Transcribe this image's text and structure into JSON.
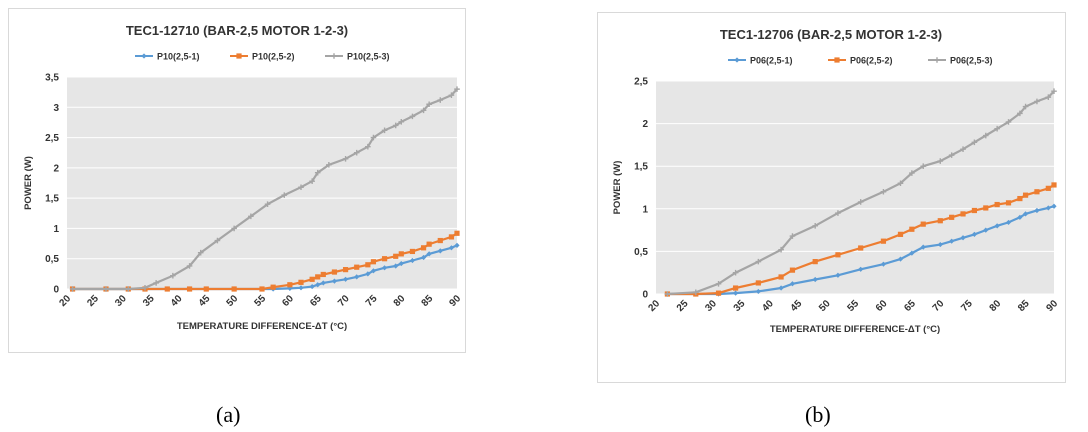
{
  "charts": [
    {
      "caption": "(a)",
      "chart_data": {
        "type": "line",
        "title": "TEC1-12710 (BAR-2,5 MOTOR 1-2-3)",
        "xlabel": "TEMPERATURE DIFFERENCE-ΔT (°C)",
        "ylabel": "POWER (W)",
        "xlim": [
          20,
          90
        ],
        "ylim": [
          0,
          3.5
        ],
        "xticks": [
          "20",
          "25",
          "30",
          "35",
          "40",
          "45",
          "50",
          "55",
          "60",
          "65",
          "70",
          "75",
          "80",
          "85",
          "90"
        ],
        "yticks": [
          "0",
          "0,5",
          "1",
          "1,5",
          "2",
          "2,5",
          "3",
          "3,5"
        ],
        "grid": true,
        "legend_position": "top",
        "series": [
          {
            "name": "P10(2,5-1)",
            "color": "#5b9bd5",
            "x": [
              21,
              27,
              31,
              34,
              38,
              42,
              45,
              50,
              55,
              57,
              60,
              62,
              64,
              65,
              66,
              68,
              70,
              72,
              74,
              75,
              77,
              79,
              80,
              82,
              84,
              85,
              87,
              89,
              90
            ],
            "y": [
              0,
              0,
              0,
              0,
              0,
              0,
              0,
              0,
              0,
              0,
              0.01,
              0.02,
              0.04,
              0.07,
              0.1,
              0.13,
              0.16,
              0.2,
              0.25,
              0.3,
              0.35,
              0.38,
              0.42,
              0.47,
              0.52,
              0.58,
              0.63,
              0.68,
              0.72
            ]
          },
          {
            "name": "P10(2,5-2)",
            "color": "#ed7d31",
            "x": [
              21,
              27,
              31,
              34,
              38,
              42,
              45,
              50,
              55,
              57,
              60,
              62,
              64,
              65,
              66,
              68,
              70,
              72,
              74,
              75,
              77,
              79,
              80,
              82,
              84,
              85,
              87,
              89,
              90
            ],
            "y": [
              0,
              0,
              0,
              0,
              0,
              0,
              0,
              0,
              0,
              0.03,
              0.07,
              0.11,
              0.16,
              0.2,
              0.24,
              0.28,
              0.32,
              0.36,
              0.4,
              0.45,
              0.5,
              0.54,
              0.58,
              0.62,
              0.68,
              0.74,
              0.8,
              0.86,
              0.92
            ]
          },
          {
            "name": "P10(2,5-3)",
            "color": "#a5a5a5",
            "x": [
              21,
              27,
              31,
              34,
              36,
              39,
              42,
              44,
              47,
              50,
              53,
              56,
              59,
              62,
              64,
              65,
              67,
              70,
              72,
              74,
              75,
              77,
              79,
              80,
              82,
              84,
              85,
              87,
              89,
              90
            ],
            "y": [
              0,
              0,
              0,
              0.02,
              0.1,
              0.22,
              0.38,
              0.6,
              0.8,
              1.0,
              1.2,
              1.4,
              1.55,
              1.68,
              1.78,
              1.92,
              2.05,
              2.15,
              2.25,
              2.35,
              2.5,
              2.62,
              2.7,
              2.76,
              2.85,
              2.95,
              3.05,
              3.12,
              3.2,
              3.3
            ]
          }
        ]
      }
    },
    {
      "caption": "(b)",
      "chart_data": {
        "type": "line",
        "title": "TEC1-12706 (BAR-2,5 MOTOR 1-2-3)",
        "xlabel": "TEMPERATURE DIFFERENCE-ΔT (°C)",
        "ylabel": "POWER (W)",
        "xlim": [
          20,
          90
        ],
        "ylim": [
          0,
          2.5
        ],
        "xticks": [
          "20",
          "25",
          "30",
          "35",
          "40",
          "45",
          "50",
          "55",
          "60",
          "65",
          "70",
          "75",
          "80",
          "85",
          "90"
        ],
        "yticks": [
          "0",
          "0,5",
          "1",
          "1,5",
          "2",
          "2,5"
        ],
        "grid": true,
        "legend_position": "top",
        "series": [
          {
            "name": "P06(2,5-1)",
            "color": "#5b9bd5",
            "x": [
              22,
              27,
              31,
              34,
              38,
              42,
              44,
              48,
              52,
              56,
              60,
              63,
              65,
              67,
              70,
              72,
              74,
              76,
              78,
              80,
              82,
              84,
              85,
              87,
              89,
              90
            ],
            "y": [
              0,
              0,
              0,
              0.01,
              0.03,
              0.07,
              0.12,
              0.17,
              0.22,
              0.29,
              0.35,
              0.41,
              0.48,
              0.55,
              0.58,
              0.62,
              0.66,
              0.7,
              0.75,
              0.8,
              0.84,
              0.9,
              0.94,
              0.98,
              1.01,
              1.03
            ]
          },
          {
            "name": "P06(2,5-2)",
            "color": "#ed7d31",
            "x": [
              22,
              27,
              31,
              34,
              38,
              42,
              44,
              48,
              52,
              56,
              60,
              63,
              65,
              67,
              70,
              72,
              74,
              76,
              78,
              80,
              82,
              84,
              85,
              87,
              89,
              90
            ],
            "y": [
              0,
              0,
              0.01,
              0.07,
              0.13,
              0.2,
              0.28,
              0.38,
              0.46,
              0.54,
              0.62,
              0.7,
              0.76,
              0.82,
              0.86,
              0.9,
              0.94,
              0.98,
              1.01,
              1.05,
              1.07,
              1.12,
              1.16,
              1.2,
              1.24,
              1.28
            ]
          },
          {
            "name": "P06(2,5-3)",
            "color": "#a5a5a5",
            "x": [
              22,
              27,
              31,
              34,
              38,
              42,
              44,
              48,
              52,
              56,
              60,
              63,
              65,
              67,
              70,
              72,
              74,
              76,
              78,
              80,
              82,
              84,
              85,
              87,
              89,
              90
            ],
            "y": [
              0,
              0.02,
              0.12,
              0.25,
              0.38,
              0.52,
              0.68,
              0.8,
              0.95,
              1.08,
              1.2,
              1.3,
              1.42,
              1.5,
              1.56,
              1.63,
              1.7,
              1.78,
              1.86,
              1.94,
              2.02,
              2.12,
              2.2,
              2.26,
              2.31,
              2.38
            ]
          }
        ]
      }
    }
  ]
}
